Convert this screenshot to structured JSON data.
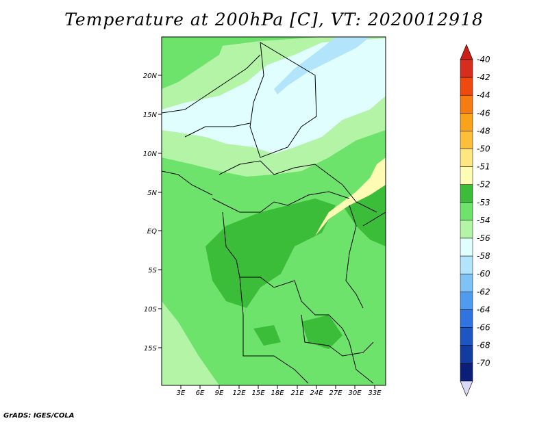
{
  "title": "Temperature at 200hPa [C], VT: 2020012918",
  "credit": "GrADS: IGES/COLA",
  "map": {
    "lat_labels": [
      "20N",
      "15N",
      "10N",
      "5N",
      "EQ",
      "5S",
      "10S",
      "15S"
    ],
    "lon_labels": [
      "3E",
      "6E",
      "9E",
      "12E",
      "15E",
      "18E",
      "21E",
      "24E",
      "27E",
      "30E",
      "33E"
    ]
  },
  "colorbar": {
    "labels": [
      "-40",
      "-42",
      "-44",
      "-46",
      "-48",
      "-50",
      "-51",
      "-52",
      "-53",
      "-54",
      "-56",
      "-58",
      "-60",
      "-62",
      "-64",
      "-66",
      "-68",
      "-70"
    ],
    "colors": [
      "#d62d1e",
      "#ee4a0f",
      "#f67b11",
      "#fba21b",
      "#fcbf3a",
      "#fee680",
      "#fefbb4",
      "#3cbd3a",
      "#6ee36b",
      "#b4f4a6",
      "#e1fefe",
      "#b2e4fb",
      "#7fc2f4",
      "#4f9cef",
      "#2f74e1",
      "#1d55c3",
      "#133ca0",
      "#0b1f78"
    ],
    "top_color": "#cc1f18",
    "bottom_color": "#d9d9f7"
  }
}
